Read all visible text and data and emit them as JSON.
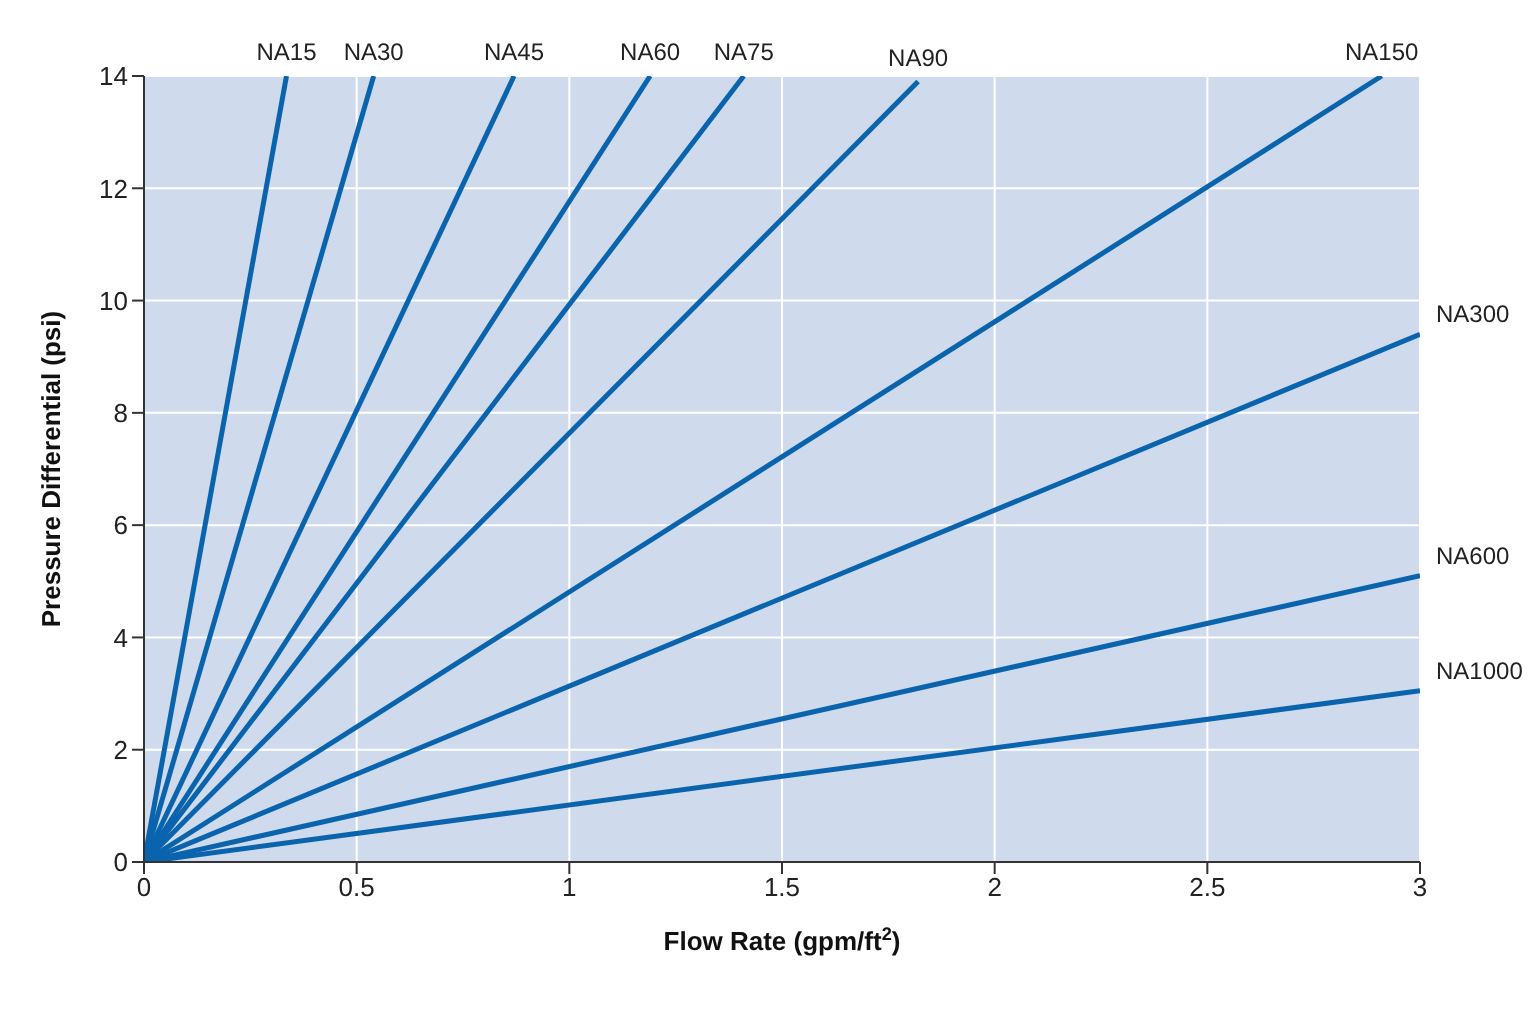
{
  "chart_data": {
    "type": "line",
    "xlabel": "Flow Rate (gpm/ft$^{2}$)",
    "ylabel": "Pressure Differential (psi)",
    "xlim": [
      0,
      3
    ],
    "xticks": [
      0,
      0.5,
      1,
      1.5,
      2,
      2.5,
      3
    ],
    "ylim": [
      0,
      14
    ],
    "yticks": [
      0,
      2,
      4,
      6,
      8,
      10,
      12,
      14
    ],
    "grid": true,
    "legend": false,
    "marker": "none",
    "line_style": "solid",
    "series": [
      {
        "name": "NA15",
        "color": "#0a64ad",
        "x": [
          0,
          0.335
        ],
        "values": [
          0,
          14
        ]
      },
      {
        "name": "NA30",
        "color": "#0a64ad",
        "x": [
          0,
          0.54
        ],
        "values": [
          0,
          14
        ]
      },
      {
        "name": "NA45",
        "color": "#0a64ad",
        "x": [
          0,
          0.87
        ],
        "values": [
          0,
          14
        ]
      },
      {
        "name": "NA60",
        "color": "#0a64ad",
        "x": [
          0,
          1.19
        ],
        "values": [
          0,
          14
        ]
      },
      {
        "name": "NA75",
        "color": "#0a64ad",
        "x": [
          0,
          1.41
        ],
        "values": [
          0,
          14
        ]
      },
      {
        "name": "NA90",
        "color": "#0a64ad",
        "x": [
          0,
          1.82
        ],
        "values": [
          0,
          13.9
        ]
      },
      {
        "name": "NA150",
        "color": "#0a64ad",
        "x": [
          0,
          2.91
        ],
        "values": [
          0,
          14
        ]
      },
      {
        "name": "NA300",
        "color": "#0a64ad",
        "x": [
          0,
          3
        ],
        "values": [
          0,
          9.4
        ]
      },
      {
        "name": "NA600",
        "color": "#0a64ad",
        "x": [
          0,
          3
        ],
        "values": [
          0,
          5.1
        ]
      },
      {
        "name": "NA1000",
        "color": "#0a64ad",
        "x": [
          0,
          3
        ],
        "values": [
          0,
          3.05
        ]
      }
    ]
  }
}
